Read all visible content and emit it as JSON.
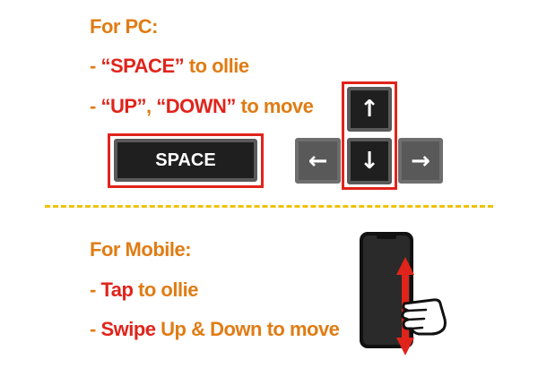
{
  "pc": {
    "heading": "For PC:",
    "line1": {
      "dash": "- ",
      "key": "“SPACE”",
      "rest": " to ollie"
    },
    "line2": {
      "dash": "- ",
      "key1": "“UP”",
      "sep": ", ",
      "key2": "“DOWN”",
      "rest": " to move"
    },
    "keys": {
      "space_label": "SPACE",
      "up_glyph": "↑",
      "down_glyph": "↓",
      "left_glyph": "←",
      "right_glyph": "→"
    }
  },
  "mobile": {
    "heading": "For Mobile:",
    "line1": {
      "dash": "- ",
      "action": "Tap",
      "rest": " to ollie"
    },
    "line2": {
      "dash": "- ",
      "action": "Swipe",
      "rest": " Up & Down to move"
    },
    "icons": [
      "phone-icon",
      "hand-pointer-icon",
      "up-down-arrow-icon"
    ]
  },
  "colors": {
    "orange": "#e07c14",
    "red": "#e0241b",
    "divider": "#f0c20a",
    "key_dark": "#1f1f1f",
    "key_gray": "#595959"
  }
}
